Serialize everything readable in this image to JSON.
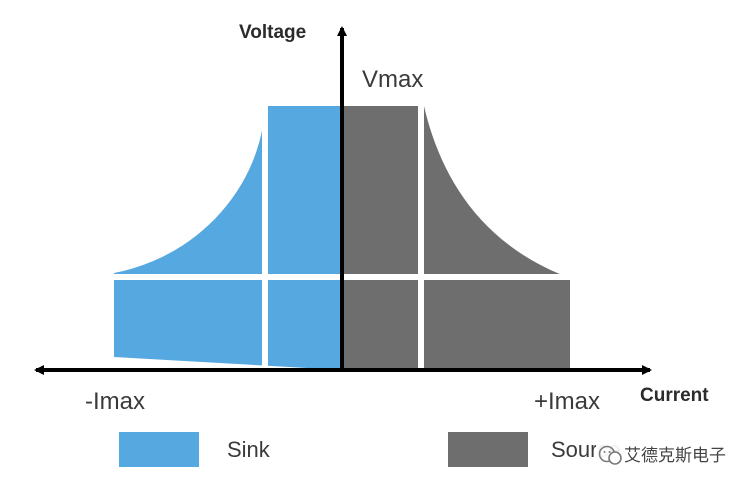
{
  "axes": {
    "y_title": "Voltage",
    "x_title": "Current",
    "v_max_label": "Vmax",
    "neg_i_max_label": "-Imax",
    "pos_i_max_label": "+Imax"
  },
  "regions": [
    {
      "name": "Sink",
      "color": "#56a8e0"
    },
    {
      "name": "Source",
      "color": "#6e6e6e"
    }
  ],
  "legend": {
    "sink_label": "Sink",
    "source_label": "Source"
  },
  "watermark": {
    "text": "艾德克斯电子",
    "icon": "wechat-icon"
  }
}
